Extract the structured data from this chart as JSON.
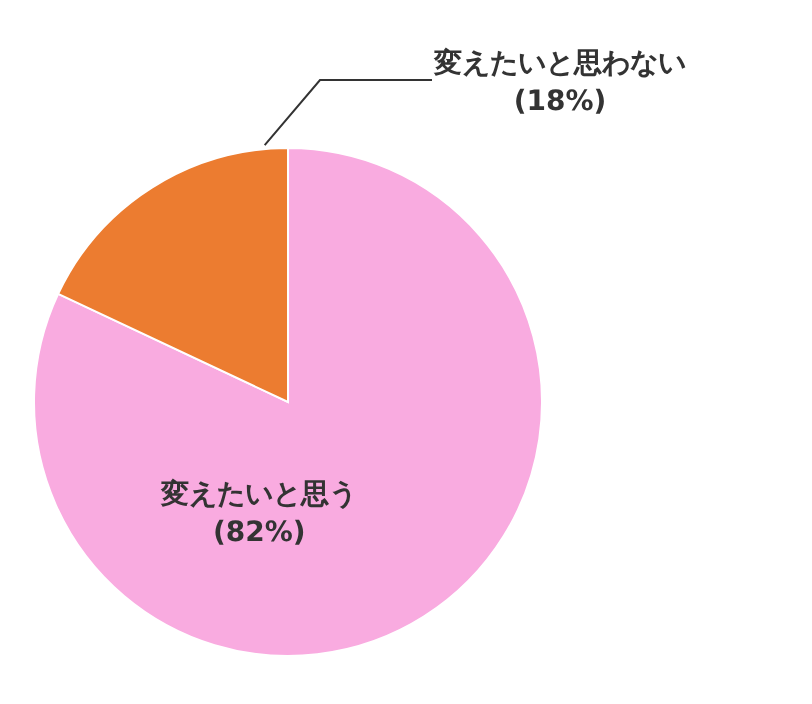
{
  "chart_data": {
    "type": "pie",
    "categories": [
      "変えたいと思う",
      "変えたいと思わない"
    ],
    "values": [
      82,
      18
    ],
    "colors": [
      "#f9abe0",
      "#ec7c30"
    ],
    "value_labels": [
      "(82%)",
      "(18%)"
    ],
    "legend": false
  }
}
